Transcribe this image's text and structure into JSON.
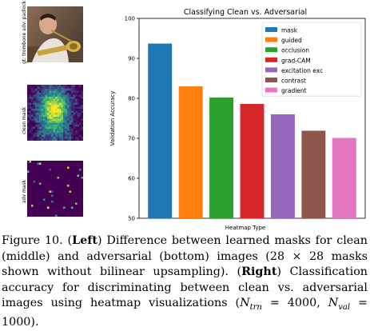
{
  "left_panel": {
    "labels": {
      "top": "gt: trombone adv: padlock",
      "middle": "clean mask",
      "bottom": "adv mask"
    }
  },
  "chart_data": {
    "type": "bar",
    "title": "Classifying Clean vs. Adversarial",
    "xlabel": "Heatmap Type",
    "ylabel": "Validation Accuracy",
    "ylim": [
      50,
      100
    ],
    "yticks": [
      50,
      60,
      70,
      80,
      90,
      100
    ],
    "legend_position": "top-right",
    "categories": [
      "mask",
      "guided",
      "occlusion",
      "grad-CAM",
      "excitation exc",
      "contrast",
      "gradient"
    ],
    "values": [
      93.7,
      83.0,
      80.2,
      78.6,
      76.0,
      71.9,
      70.1
    ],
    "colors": [
      "#1f77b4",
      "#ff7f0e",
      "#2ca02c",
      "#d62728",
      "#9467bd",
      "#8c564b",
      "#e377c2"
    ]
  },
  "caption": {
    "figure_label": "Figure 10.",
    "left_label": "Left",
    "text_1": " Difference between learned masks for clean (middle) and adversarial (bottom) images (28 × 28 masks shown without bilinear upsampling).",
    "right_label": "Right",
    "text_2": " Classification accuracy for discriminating between clean vs. adversarial images using heatmap visualizations (",
    "n_trn_symbol": "N",
    "n_trn_sub": "trn",
    "n_trn_value": " = 4000, ",
    "n_val_symbol": "N",
    "n_val_sub": "val",
    "n_val_value": " = 1000).",
    "text_end": ""
  }
}
